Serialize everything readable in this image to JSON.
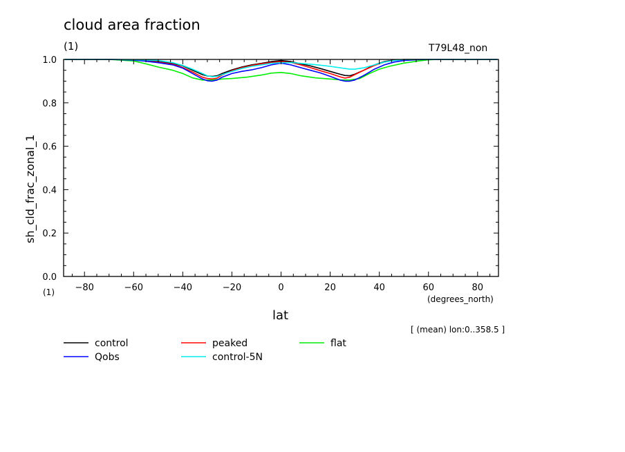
{
  "figure": {
    "title": "cloud area fraction",
    "units_top": "(1)",
    "run_label": "T79L48_non",
    "x_units_left": "(1)",
    "x_units_label": "(degrees_north)",
    "mean_note": "[ (mean) lon:0..358.5 ]"
  },
  "chart_data": {
    "type": "line",
    "title": "cloud area fraction",
    "xlabel": "lat",
    "ylabel": "sh_cld_frac_zonal_1",
    "xlim": [
      -88.5,
      88.5
    ],
    "ylim": [
      0.0,
      1.0
    ],
    "x_ticks": [
      -80,
      -60,
      -40,
      -20,
      0,
      20,
      40,
      60,
      80
    ],
    "x_tick_labels": [
      "−80",
      "−60",
      "−40",
      "−20",
      "0",
      "20",
      "40",
      "60",
      "80"
    ],
    "y_ticks": [
      0.0,
      0.2,
      0.4,
      0.6,
      0.8,
      1.0
    ],
    "y_tick_labels": [
      "0.0",
      "0.2",
      "0.4",
      "0.6",
      "0.8",
      "1.0"
    ],
    "grid": false,
    "legend_position": "bottom",
    "series": [
      {
        "name": "control",
        "color": "#000000",
        "x": [
          -88,
          -70,
          -60,
          -50,
          -44,
          -40,
          -36,
          -32,
          -30,
          -28,
          -26,
          -24,
          -20,
          -16,
          -12,
          -8,
          -4,
          0,
          4,
          8,
          12,
          16,
          20,
          24,
          26,
          28,
          30,
          34,
          38,
          42,
          46,
          50,
          56,
          60,
          70,
          88
        ],
        "y": [
          1.0,
          1.0,
          0.998,
          0.99,
          0.982,
          0.97,
          0.95,
          0.93,
          0.924,
          0.922,
          0.925,
          0.935,
          0.952,
          0.965,
          0.975,
          0.982,
          0.99,
          0.995,
          0.99,
          0.98,
          0.97,
          0.958,
          0.945,
          0.932,
          0.926,
          0.925,
          0.932,
          0.952,
          0.975,
          0.99,
          0.997,
          1.0,
          1.0,
          1.0,
          1.0,
          1.0
        ]
      },
      {
        "name": "peaked",
        "color": "#ff0000",
        "x": [
          -88,
          -70,
          -60,
          -50,
          -44,
          -40,
          -36,
          -32,
          -30,
          -28,
          -26,
          -24,
          -20,
          -16,
          -12,
          -8,
          -4,
          0,
          4,
          8,
          12,
          16,
          20,
          24,
          26,
          28,
          30,
          34,
          38,
          42,
          46,
          50,
          56,
          60,
          70,
          88
        ],
        "y": [
          1.0,
          1.0,
          0.997,
          0.988,
          0.978,
          0.962,
          0.942,
          0.918,
          0.912,
          0.91,
          0.914,
          0.928,
          0.948,
          0.962,
          0.972,
          0.98,
          0.986,
          0.99,
          0.986,
          0.975,
          0.962,
          0.948,
          0.935,
          0.92,
          0.914,
          0.918,
          0.93,
          0.952,
          0.972,
          0.988,
          0.996,
          0.999,
          1.0,
          1.0,
          1.0,
          1.0
        ]
      },
      {
        "name": "flat",
        "color": "#00ee00",
        "x": [
          -88,
          -70,
          -60,
          -55,
          -50,
          -44,
          -40,
          -36,
          -32,
          -28,
          -24,
          -20,
          -14,
          -8,
          -4,
          0,
          4,
          8,
          14,
          20,
          24,
          28,
          32,
          36,
          40,
          44,
          50,
          56,
          60,
          64,
          70,
          88
        ],
        "y": [
          1.0,
          1.0,
          0.993,
          0.98,
          0.965,
          0.95,
          0.935,
          0.915,
          0.905,
          0.905,
          0.91,
          0.912,
          0.918,
          0.928,
          0.937,
          0.94,
          0.935,
          0.925,
          0.915,
          0.91,
          0.906,
          0.905,
          0.912,
          0.935,
          0.955,
          0.968,
          0.983,
          0.993,
          0.998,
          1.0,
          1.0,
          1.0
        ]
      },
      {
        "name": "Qobs",
        "color": "#0000ff",
        "x": [
          -88,
          -70,
          -60,
          -56,
          -50,
          -44,
          -40,
          -36,
          -32,
          -30,
          -28,
          -26,
          -24,
          -20,
          -16,
          -12,
          -8,
          -4,
          0,
          4,
          8,
          12,
          16,
          20,
          24,
          26,
          28,
          30,
          34,
          38,
          42,
          46,
          50,
          56,
          60,
          70,
          88
        ],
        "y": [
          1.0,
          1.0,
          0.997,
          0.993,
          0.985,
          0.975,
          0.96,
          0.935,
          0.91,
          0.902,
          0.9,
          0.905,
          0.918,
          0.935,
          0.945,
          0.952,
          0.962,
          0.975,
          0.983,
          0.975,
          0.962,
          0.95,
          0.938,
          0.922,
          0.905,
          0.9,
          0.9,
          0.905,
          0.928,
          0.955,
          0.975,
          0.988,
          0.995,
          0.999,
          1.0,
          1.0,
          1.0
        ]
      },
      {
        "name": "control-5N",
        "color": "#00eeee",
        "x": [
          -88,
          -70,
          -60,
          -50,
          -44,
          -40,
          -36,
          -32,
          -30,
          -28,
          -26,
          -24,
          -20,
          -16,
          -12,
          -8,
          -4,
          0,
          5,
          10,
          15,
          20,
          25,
          28,
          30,
          34,
          38,
          42,
          46,
          50,
          56,
          60,
          70,
          88
        ],
        "y": [
          1.0,
          1.0,
          0.999,
          0.995,
          0.985,
          0.972,
          0.955,
          0.935,
          0.925,
          0.92,
          0.922,
          0.93,
          0.945,
          0.958,
          0.968,
          0.975,
          0.982,
          0.985,
          0.985,
          0.98,
          0.975,
          0.968,
          0.96,
          0.955,
          0.955,
          0.962,
          0.975,
          0.988,
          0.995,
          0.999,
          1.0,
          1.0,
          1.0,
          1.0
        ]
      }
    ]
  }
}
